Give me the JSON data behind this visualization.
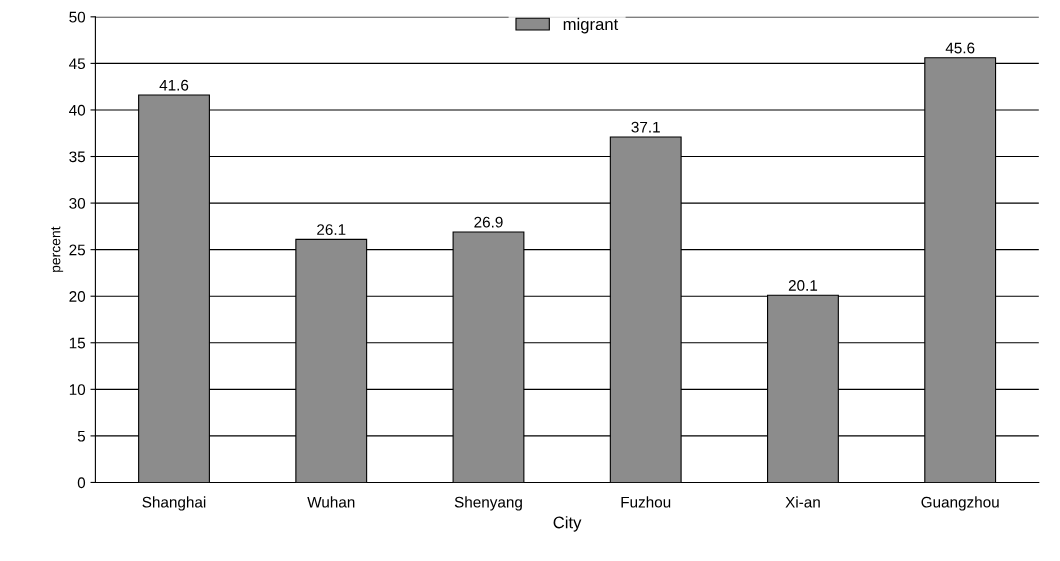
{
  "chart_data": {
    "type": "bar",
    "xlabel": "City",
    "ylabel": "percent",
    "categories": [
      "Shanghai",
      "Wuhan",
      "Shenyang",
      "Fuzhou",
      "Xi-an",
      "Guangzhou"
    ],
    "series": [
      {
        "name": "migrant",
        "color": "#8c8c8c",
        "values": [
          41.6,
          26.1,
          26.9,
          37.1,
          20.1,
          45.6
        ]
      }
    ],
    "ylim": [
      0,
      50
    ],
    "yticks": [
      0,
      5,
      10,
      15,
      20,
      25,
      30,
      35,
      40,
      45,
      50
    ],
    "grid": "y",
    "legend": "top",
    "data_labels": true
  }
}
